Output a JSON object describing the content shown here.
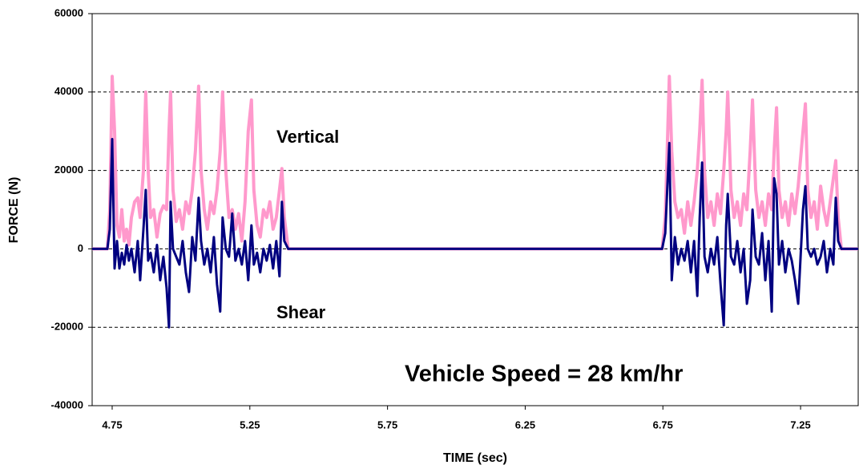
{
  "chart_data": {
    "type": "line",
    "xlabel": "TIME (sec)",
    "ylabel": "FORCE (N)",
    "annotation": "Vehicle Speed = 28 km/hr",
    "xlim": [
      4.6773,
      7.4593
    ],
    "xticks": [
      4.75,
      5.25,
      5.75,
      6.25,
      6.75,
      7.25
    ],
    "ylim": [
      -40000,
      60000
    ],
    "yticks": [
      -40000,
      -20000,
      0,
      20000,
      40000,
      60000
    ],
    "grid": true,
    "x": [
      4.6773,
      4.7326,
      4.7413,
      4.75,
      4.7587,
      4.7674,
      4.7762,
      4.7849,
      4.7936,
      4.8023,
      4.811,
      4.8198,
      4.8314,
      4.843,
      4.8517,
      4.8634,
      4.8721,
      4.8808,
      4.8895,
      4.9012,
      4.9128,
      4.9244,
      4.936,
      4.9477,
      4.9564,
      4.9622,
      4.9709,
      4.9826,
      4.9942,
      5.0058,
      5.0174,
      5.0291,
      5.0407,
      5.0523,
      5.064,
      5.0727,
      5.0843,
      5.0959,
      5.1076,
      5.1192,
      5.1308,
      5.1424,
      5.1512,
      5.1628,
      5.1744,
      5.186,
      5.1977,
      5.2093,
      5.2209,
      5.2326,
      5.2442,
      5.2558,
      5.2645,
      5.2762,
      5.2878,
      5.2994,
      5.311,
      5.3227,
      5.3343,
      5.3459,
      5.3576,
      5.3663,
      5.375,
      5.3895,
      6.7471,
      6.7587,
      6.7733,
      6.782,
      6.7936,
      6.8052,
      6.8169,
      6.8285,
      6.8401,
      6.8517,
      6.8634,
      6.875,
      6.8837,
      6.8924,
      6.9012,
      6.9128,
      6.9244,
      6.936,
      6.9477,
      6.9593,
      6.9709,
      6.9797,
      6.9855,
      6.9971,
      7.0087,
      7.0203,
      7.032,
      7.0436,
      7.0552,
      7.0669,
      7.0756,
      7.0872,
      7.0988,
      7.1105,
      7.1221,
      7.1337,
      7.1453,
      7.1541,
      7.1628,
      7.1715,
      7.1831,
      7.1948,
      7.2064,
      7.218,
      7.2297,
      7.2413,
      7.2587,
      7.2674,
      7.2762,
      7.2878,
      7.2994,
      7.311,
      7.3227,
      7.3343,
      7.3459,
      7.3576,
      7.3692,
      7.3779,
      7.3866,
      7.3983,
      7.4593
    ],
    "series": [
      {
        "name": "Vertical",
        "color": "#ff99cc",
        "values": [
          0,
          0,
          10000,
          44000,
          30000,
          6000,
          3000,
          10000,
          2000,
          5000,
          1000,
          8000,
          12000,
          13000,
          8000,
          20000,
          40000,
          20000,
          8000,
          10000,
          3000,
          9000,
          11000,
          10000,
          30000,
          40000,
          15000,
          7000,
          10000,
          5000,
          12000,
          9000,
          15000,
          25000,
          41500,
          20000,
          10000,
          5000,
          12000,
          9000,
          15000,
          25000,
          40000,
          20000,
          8000,
          10000,
          5000,
          9000,
          2000,
          12000,
          30000,
          38000,
          15000,
          6000,
          3000,
          10000,
          8000,
          12000,
          5000,
          8000,
          15000,
          20500,
          8000,
          0,
          0,
          8000,
          44000,
          25000,
          12000,
          8000,
          10000,
          4000,
          12000,
          6000,
          12000,
          20000,
          30000,
          43000,
          20000,
          8000,
          12000,
          6000,
          14000,
          9000,
          20000,
          30000,
          40000,
          15000,
          8000,
          12000,
          6000,
          14000,
          10000,
          25000,
          38000,
          15000,
          8000,
          12000,
          6000,
          14000,
          10000,
          25000,
          36000,
          15000,
          8000,
          12000,
          6000,
          14000,
          9000,
          16000,
          30000,
          37000,
          15000,
          8000,
          12000,
          5000,
          16000,
          10000,
          6000,
          12000,
          18000,
          22500,
          8000,
          0,
          0
        ]
      },
      {
        "name": "Shear",
        "color": "#000080",
        "values": [
          0,
          0,
          5000,
          28000,
          -5000,
          2000,
          -5000,
          -1000,
          -4000,
          1000,
          -3000,
          0,
          -6000,
          2000,
          -8000,
          5000,
          15000,
          -3000,
          -1000,
          -6000,
          1000,
          -8000,
          -2000,
          -10000,
          -20000,
          12000,
          0,
          -2000,
          -4000,
          2000,
          -6000,
          -11000,
          3000,
          -3000,
          13000,
          2000,
          -4000,
          0,
          -6000,
          3000,
          -9000,
          -16000,
          8000,
          0,
          -2000,
          9000,
          -3000,
          0,
          -4000,
          2000,
          -8000,
          6000,
          -4000,
          -1000,
          -6000,
          0,
          -3000,
          1000,
          -5000,
          2000,
          -7000,
          12000,
          2000,
          0,
          0,
          4000,
          27000,
          -8000,
          3000,
          -4000,
          0,
          -3000,
          2000,
          -6000,
          2000,
          -12000,
          8000,
          22000,
          -2000,
          -6000,
          0,
          -4000,
          3000,
          -9000,
          -19500,
          6000,
          14000,
          -2000,
          -4000,
          2000,
          -6000,
          0,
          -14000,
          -8000,
          10000,
          -2000,
          -4000,
          4000,
          -8000,
          2000,
          -16000,
          18000,
          14000,
          -4000,
          2000,
          -6000,
          0,
          -3000,
          -8000,
          -14000,
          10000,
          16000,
          0,
          -2000,
          0,
          -4000,
          -2000,
          2000,
          -6000,
          0,
          -4000,
          13000,
          2000,
          0,
          0
        ]
      }
    ]
  }
}
